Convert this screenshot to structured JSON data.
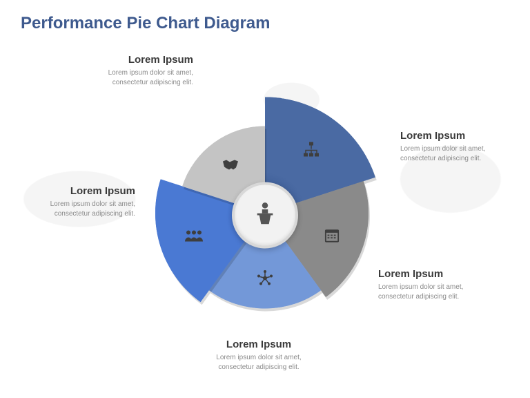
{
  "title": {
    "text": "Performance Pie Chart Diagram",
    "color": "#3e5a8e",
    "fontsize": 24
  },
  "chart": {
    "type": "pie",
    "background_color": "#ffffff",
    "radius_base": 150,
    "center": {
      "diameter": 96,
      "bg_color": "#f2f2f2",
      "ring_color": "#d8d8d8",
      "icon": "podium-speaker",
      "icon_color": "#555555"
    },
    "slices": [
      {
        "angle": 72,
        "radius_scale": 1.12,
        "color": "#4a6aa3",
        "icon": "org-chart-icon"
      },
      {
        "angle": 72,
        "radius_scale": 1.0,
        "color": "#8a8a8a",
        "icon": "calendar-icon"
      },
      {
        "angle": 72,
        "radius_scale": 0.92,
        "color": "#7398d8",
        "icon": "network-star-icon"
      },
      {
        "angle": 72,
        "radius_scale": 1.06,
        "color": "#4a79d3",
        "icon": "people-group-icon"
      },
      {
        "angle": 72,
        "radius_scale": 0.84,
        "color": "#c4c4c4",
        "icon": "handshake-icon"
      }
    ]
  },
  "labels": [
    {
      "pos": "tr",
      "title": "Lorem Ipsum",
      "desc": "Lorem ipsum dolor sit amet, consectetur adipiscing elit."
    },
    {
      "pos": "r",
      "title": "Lorem Ipsum",
      "desc": "Lorem ipsum dolor sit amet, consectetur adipiscing elit."
    },
    {
      "pos": "b",
      "title": "Lorem Ipsum",
      "desc": "Lorem ipsum dolor sit amet, consectetur adipiscing elit."
    },
    {
      "pos": "l",
      "title": "Lorem Ipsum",
      "desc": "Lorem ipsum dolor sit amet, consectetur adipiscing elit."
    },
    {
      "pos": "tl",
      "title": "Lorem Ipsum",
      "desc": "Lorem ipsum dolor sit amet, consectetur adipiscing elit."
    }
  ],
  "typography": {
    "label_title_size": 15,
    "label_title_color": "#3a3a3a",
    "label_desc_size": 10,
    "label_desc_color": "#8a8a8a"
  }
}
